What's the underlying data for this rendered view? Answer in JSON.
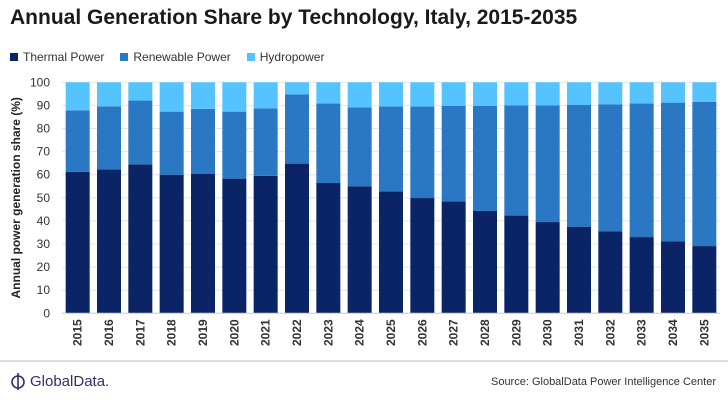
{
  "chart_data": {
    "type": "bar",
    "stacked": true,
    "title": "Annual Generation Share by Technology, Italy, 2015-2035",
    "xlabel": "",
    "ylabel": "Annual power generation share (%)",
    "ylim": [
      0,
      100
    ],
    "yticks": [
      0,
      10,
      20,
      30,
      40,
      50,
      60,
      70,
      80,
      90,
      100
    ],
    "grid": true,
    "legend": "top-left",
    "categories": [
      "2015",
      "2016",
      "2017",
      "2018",
      "2019",
      "2020",
      "2021",
      "2022",
      "2023",
      "2024",
      "2025",
      "2026",
      "2027",
      "2028",
      "2029",
      "2030",
      "2031",
      "2032",
      "2033",
      "2034",
      "2035"
    ],
    "series": [
      {
        "name": "Thermal Power",
        "color": "#0b2466",
        "values": [
          61.2,
          62.3,
          64.5,
          60.0,
          60.3,
          58.3,
          59.5,
          64.8,
          56.4,
          55.0,
          52.7,
          49.9,
          48.5,
          44.3,
          42.3,
          39.5,
          37.5,
          35.4,
          33.0,
          31.2,
          29.1
        ]
      },
      {
        "name": "Renewable Power",
        "color": "#2a78c4",
        "values": [
          26.7,
          27.3,
          27.6,
          27.3,
          28.2,
          29.0,
          29.2,
          30.0,
          34.4,
          34.2,
          36.8,
          39.6,
          41.3,
          45.5,
          47.7,
          50.5,
          52.8,
          55.1,
          57.8,
          60.0,
          62.4
        ]
      },
      {
        "name": "Hydropower",
        "color": "#55c3ff",
        "values": [
          12.1,
          10.4,
          7.9,
          12.7,
          11.5,
          12.7,
          11.3,
          5.2,
          9.2,
          10.8,
          10.5,
          10.5,
          10.2,
          10.2,
          10.0,
          10.0,
          9.7,
          9.5,
          9.2,
          8.8,
          8.5
        ]
      }
    ]
  },
  "footer": {
    "logo_text": "GlobalData.",
    "source": "Source: GlobalData Power Intelligence Center"
  }
}
